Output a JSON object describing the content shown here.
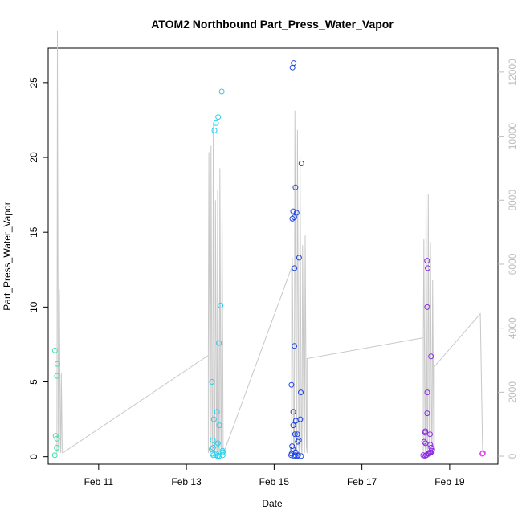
{
  "chart_data": {
    "type": "scatter",
    "title": "ATOM2 Northbound Part_Press_Water_Vapor",
    "xlabel": "Date",
    "ylabel": "Part_Press_Water_Vapor",
    "x_ticks": [
      "Feb 11",
      "Feb 13",
      "Feb 15",
      "Feb 17",
      "Feb 19"
    ],
    "x_tick_days": [
      11,
      13,
      15,
      17,
      19
    ],
    "xlim_days": [
      9.85,
      20.1
    ],
    "y_ticks": [
      "0",
      "5",
      "10",
      "15",
      "20",
      "25"
    ],
    "ylim": [
      -0.5,
      27.3
    ],
    "y2_ticks": [
      "0",
      "2000",
      "4000",
      "6000",
      "8000",
      "10000",
      "12000"
    ],
    "y2lim": [
      -250,
      12750
    ],
    "grid": false,
    "legend": "none",
    "series_color_scale": [
      "#40e0a0",
      "#22d3ee",
      "#1d4ed8",
      "#7e22ce",
      "#e040fb"
    ],
    "line_color": "#c8c8c8",
    "clusters": [
      {
        "x_center": 10.05,
        "x_spread": 0.12,
        "color": "#3fe0b0",
        "values": [
          5.4,
          6.2,
          7.1,
          1.4,
          0.6,
          1.2,
          0.1
        ]
      },
      {
        "x_center": 13.7,
        "x_spread": 0.28,
        "color": "#25d0ee",
        "values": [
          24.4,
          22.7,
          22.3,
          21.8,
          10.1,
          7.6,
          5.0,
          3.0,
          2.5,
          2.1,
          1.1,
          0.9,
          0.8,
          0.6,
          0.5,
          0.4,
          0.3,
          0.2,
          0.2,
          0.1,
          0.1,
          0.1,
          0.05,
          0.05
        ]
      },
      {
        "x_center": 15.5,
        "x_spread": 0.25,
        "color": "#1e44e6",
        "values": [
          26.3,
          26.0,
          19.6,
          18.0,
          16.4,
          16.3,
          16.0,
          15.9,
          13.3,
          12.6,
          7.4,
          4.8,
          4.3,
          3.0,
          2.5,
          2.4,
          2.1,
          1.5,
          1.5,
          1.1,
          1.0,
          0.7,
          0.5,
          0.3,
          0.2,
          0.1,
          0.1,
          0.1,
          0.05,
          0.05,
          0.05
        ]
      },
      {
        "x_center": 18.5,
        "x_spread": 0.22,
        "color": "#8a2be2",
        "values": [
          13.1,
          12.6,
          10.0,
          6.7,
          4.3,
          2.9,
          1.7,
          1.6,
          1.5,
          1.0,
          0.9,
          0.8,
          0.6,
          0.5,
          0.4,
          0.3,
          0.3,
          0.2,
          0.2,
          0.1,
          0.1,
          0.1,
          0.05
        ]
      },
      {
        "x_center": 19.75,
        "x_spread": 0.04,
        "color": "#e03ae8",
        "values": [
          0.2,
          0.25
        ]
      }
    ],
    "altitude_profiles": [
      {
        "x_start": 10.05,
        "x_end": 10.18,
        "peaks": [
          13300,
          5200,
          2600
        ]
      },
      {
        "x_start": 13.5,
        "x_end": 13.85,
        "peaks": [
          9500,
          9700,
          10400,
          8000,
          8300,
          9000,
          7800
        ]
      },
      {
        "x_start": 15.4,
        "x_end": 15.75,
        "peaks": [
          6200,
          10800,
          10200,
          9400,
          6600,
          6900
        ]
      },
      {
        "x_start": 18.4,
        "x_end": 18.65,
        "peaks": [
          6800,
          8400,
          8200,
          6700,
          5500
        ]
      }
    ],
    "altitude_connections": [
      [
        10.18,
        100
      ],
      [
        13.5,
        3150
      ],
      [
        13.85,
        100
      ],
      [
        15.4,
        5900
      ],
      [
        15.75,
        3050
      ],
      [
        18.4,
        3700
      ],
      [
        18.65,
        2800
      ],
      [
        19.7,
        4450
      ],
      [
        19.75,
        200
      ]
    ]
  }
}
